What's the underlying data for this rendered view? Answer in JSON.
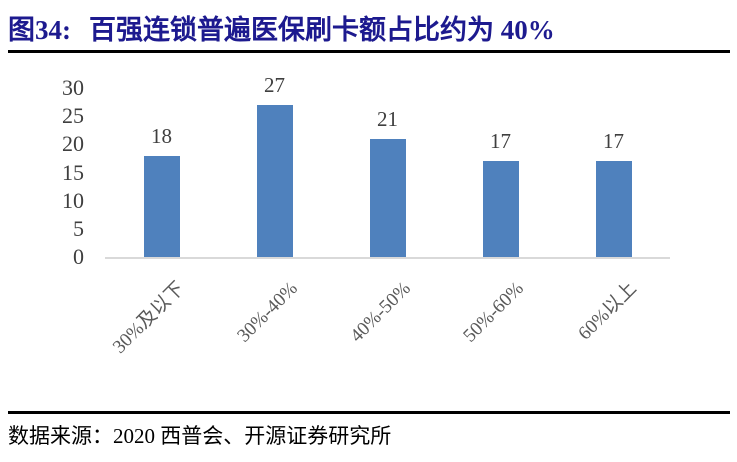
{
  "figure": {
    "label": "图34:",
    "title": "百强连锁普遍医保刷卡额占比约为 40%"
  },
  "source": {
    "text": "数据来源：2020 西普会、开源证券研究所"
  },
  "chart_data": {
    "type": "bar",
    "categories": [
      "30%及以下",
      "30%-40%",
      "40%-50%",
      "50%-60%",
      "60%以上"
    ],
    "values": [
      18,
      27,
      21,
      17,
      17
    ],
    "title": "百强连锁普遍医保刷卡额占比约为 40%",
    "xlabel": "",
    "ylabel": "",
    "ylim": [
      0,
      30
    ],
    "yticks": [
      0,
      5,
      10,
      15,
      20,
      25,
      30
    ],
    "grid": false,
    "legend": "none",
    "bar_color": "#4F81BD",
    "axis_line_color": "#D9D9D9",
    "y_tick_label_color": "#3F3F3F",
    "x_tick_label_color": "#595959",
    "value_label_color": "#3F3F3F"
  },
  "colors": {
    "title_text": "#1D1A8F",
    "rule": "#000000",
    "source_text": "#000000"
  }
}
